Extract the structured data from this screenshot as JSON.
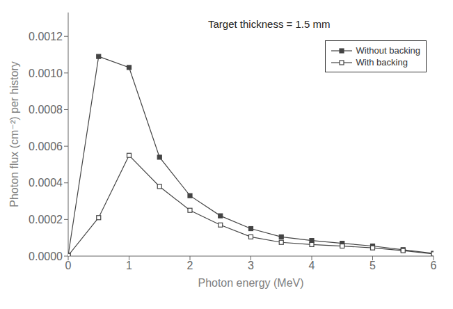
{
  "chart_data": {
    "type": "line",
    "title": "Target thickness = 1.5 mm",
    "x_label": "Photon energy (MeV)",
    "y_label": "Photon flux (cm⁻²) per history",
    "x": [
      0.0,
      0.5,
      1.0,
      1.5,
      2.0,
      2.5,
      3.0,
      3.5,
      4.0,
      4.5,
      5.0,
      5.5,
      6.0
    ],
    "series": [
      {
        "name": "Without backing",
        "color": "#444444",
        "marker": "square",
        "line_style": "solid",
        "values": [
          5e-06,
          0.00109,
          0.00103,
          0.00054,
          0.00033,
          0.00022,
          0.00015,
          0.000105,
          8.5e-05,
          7e-05,
          5.5e-05,
          3.5e-05,
          1.5e-05
        ]
      },
      {
        "name": "With backing",
        "color": "#444444",
        "marker": "open_square",
        "line_style": "solid",
        "values": [
          3e-06,
          0.00021,
          0.00055,
          0.00038,
          0.00025,
          0.00017,
          0.000105,
          7.5e-05,
          6.3e-05,
          5.5e-05,
          4.5e-05,
          3e-05,
          1.2e-05
        ]
      }
    ],
    "xlim": [
      0,
      6
    ],
    "ylim": [
      0,
      0.00133
    ],
    "xticks": [
      0,
      1,
      2,
      3,
      4,
      5,
      6
    ],
    "yticks": [
      {
        "value": 0,
        "label": "0.0000"
      },
      {
        "value": 0.0002,
        "label": "0.0002"
      },
      {
        "value": 0.0004,
        "label": "0.0004"
      },
      {
        "value": 0.0006,
        "label": "0.0006"
      },
      {
        "value": 0.0008,
        "label": "0.0008"
      },
      {
        "value": 0.001,
        "label": "0.0010"
      },
      {
        "value": 0.0012,
        "label": "0.0012"
      }
    ],
    "grid": false,
    "legend": "upper right"
  }
}
